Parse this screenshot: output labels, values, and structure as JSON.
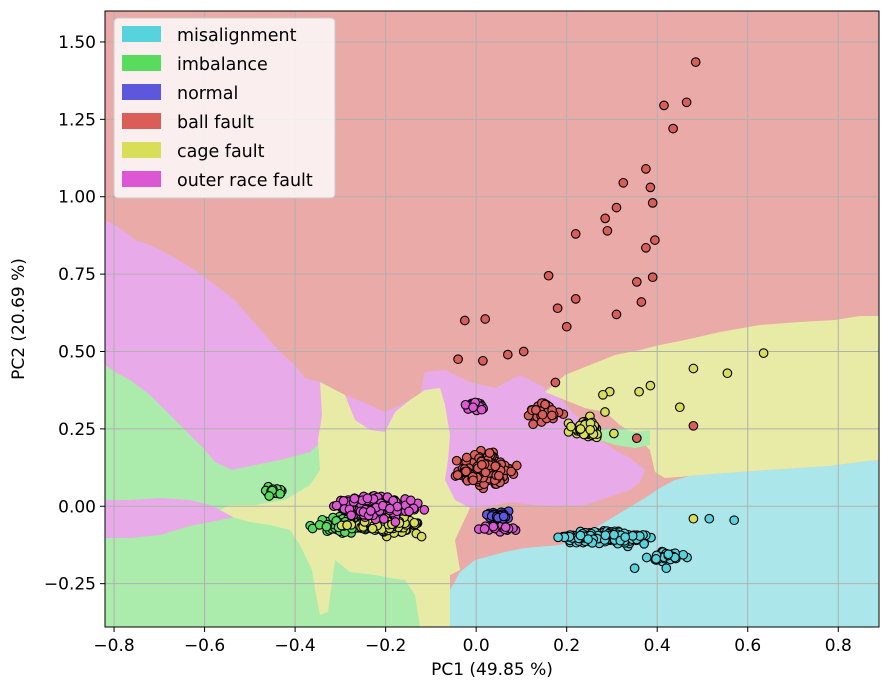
{
  "chart_data": {
    "type": "scatter",
    "subtype": "decision-region scatter (PCA projection)",
    "xlabel": "PC1 (49.85 %)",
    "ylabel": "PC2 (20.69 %)",
    "xlim": [
      -0.82,
      0.89
    ],
    "ylim": [
      -0.39,
      1.6
    ],
    "xticks": [
      -0.8,
      -0.6,
      -0.4,
      -0.2,
      0.0,
      0.2,
      0.4,
      0.6,
      0.8
    ],
    "xtick_labels": [
      "−0.8",
      "−0.6",
      "−0.4",
      "−0.2",
      "0.0",
      "0.2",
      "0.4",
      "0.6",
      "0.8"
    ],
    "yticks": [
      -0.25,
      0.0,
      0.25,
      0.5,
      0.75,
      1.0,
      1.25,
      1.5
    ],
    "ytick_labels": [
      "−0.25",
      "0.00",
      "0.25",
      "0.50",
      "0.75",
      "1.00",
      "1.25",
      "1.50"
    ],
    "grid": true,
    "legend_position": "top-left",
    "classes": [
      {
        "name": "misalignment",
        "color": "#56d3dc",
        "region_color": "#abe7ea"
      },
      {
        "name": "imbalance",
        "color": "#59db5d",
        "region_color": "#abebab"
      },
      {
        "name": "normal",
        "color": "#5d57dd",
        "region_color": "#b0aded"
      },
      {
        "name": "ball fault",
        "color": "#db5d57",
        "region_color": "#eaaaa8"
      },
      {
        "name": "cage fault",
        "color": "#d8de57",
        "region_color": "#e8eba6"
      },
      {
        "name": "outer race fault",
        "color": "#dd57d5",
        "region_color": "#e9aae9"
      }
    ],
    "series": [
      {
        "name": "ball fault",
        "highlight_points": [
          [
            0.485,
            1.435
          ],
          [
            0.415,
            1.295
          ],
          [
            0.465,
            1.305
          ],
          [
            0.435,
            1.22
          ],
          [
            0.375,
            1.09
          ],
          [
            0.325,
            1.045
          ],
          [
            0.385,
            1.03
          ],
          [
            0.39,
            0.98
          ],
          [
            0.31,
            0.965
          ],
          [
            0.285,
            0.93
          ],
          [
            0.29,
            0.89
          ],
          [
            0.375,
            0.835
          ],
          [
            0.395,
            0.86
          ],
          [
            0.22,
            0.88
          ],
          [
            0.16,
            0.745
          ],
          [
            0.355,
            0.725
          ],
          [
            0.39,
            0.74
          ],
          [
            0.365,
            0.66
          ],
          [
            0.22,
            0.67
          ],
          [
            0.18,
            0.64
          ],
          [
            -0.025,
            0.6
          ],
          [
            0.02,
            0.605
          ],
          [
            0.31,
            0.62
          ],
          [
            0.2,
            0.58
          ],
          [
            0.105,
            0.5
          ],
          [
            0.07,
            0.49
          ],
          [
            0.175,
            0.4
          ],
          [
            0.015,
            0.47
          ],
          [
            0.48,
            0.26
          ],
          [
            0.355,
            0.22
          ],
          [
            -0.04,
            0.475
          ]
        ]
      },
      {
        "name": "cage fault",
        "highlight_points": [
          [
            0.635,
            0.495
          ],
          [
            0.555,
            0.43
          ],
          [
            0.48,
            0.445
          ],
          [
            0.45,
            0.32
          ],
          [
            0.385,
            0.39
          ],
          [
            0.36,
            0.37
          ],
          [
            0.295,
            0.37
          ],
          [
            0.28,
            0.36
          ],
          [
            0.48,
            -0.04
          ]
        ]
      },
      {
        "name": "misalignment",
        "highlight_points": [
          [
            0.57,
            -0.045
          ],
          [
            0.515,
            -0.04
          ],
          [
            0.42,
            -0.2
          ],
          [
            0.35,
            -0.2
          ]
        ]
      }
    ]
  }
}
